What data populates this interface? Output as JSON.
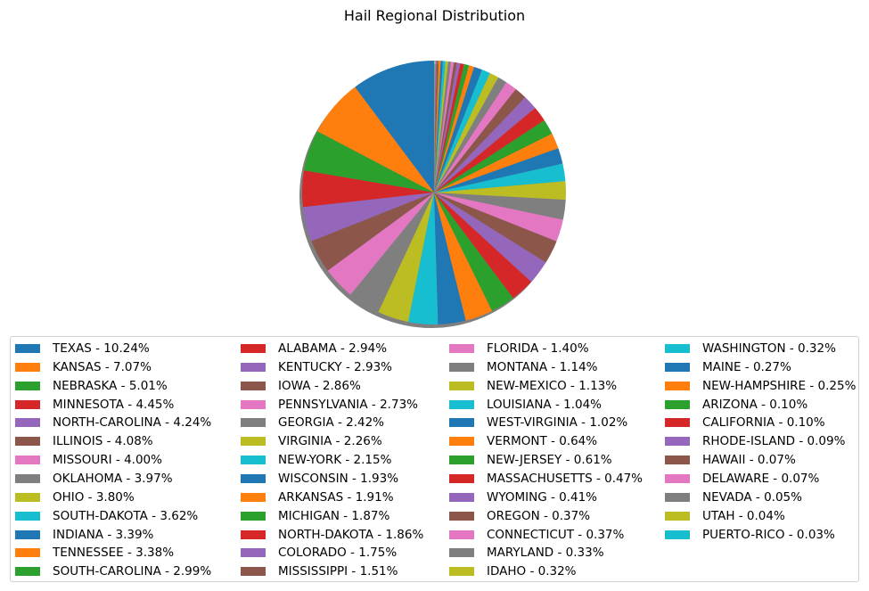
{
  "chart_data": {
    "type": "pie",
    "title": "Hail Regional Distribution",
    "shadow": true,
    "start_angle_deg": 90,
    "direction": "counterclockwise",
    "legend_placement": "bottom",
    "legend_columns": 4,
    "slices": [
      {
        "label": "TEXAS - 10.24%",
        "value": 10.24,
        "color": "#1f77b4"
      },
      {
        "label": "KANSAS - 7.07%",
        "value": 7.07,
        "color": "#ff7f0e"
      },
      {
        "label": "NEBRASKA - 5.01%",
        "value": 5.01,
        "color": "#2ca02c"
      },
      {
        "label": "MINNESOTA - 4.45%",
        "value": 4.45,
        "color": "#d62728"
      },
      {
        "label": "NORTH-CAROLINA - 4.24%",
        "value": 4.24,
        "color": "#9467bd"
      },
      {
        "label": "ILLINOIS - 4.08%",
        "value": 4.08,
        "color": "#8c564b"
      },
      {
        "label": "MISSOURI - 4.00%",
        "value": 4.0,
        "color": "#e377c2"
      },
      {
        "label": "OKLAHOMA - 3.97%",
        "value": 3.97,
        "color": "#7f7f7f"
      },
      {
        "label": "OHIO - 3.80%",
        "value": 3.8,
        "color": "#bcbd22"
      },
      {
        "label": "SOUTH-DAKOTA - 3.62%",
        "value": 3.62,
        "color": "#17becf"
      },
      {
        "label": "INDIANA - 3.39%",
        "value": 3.39,
        "color": "#1f77b4"
      },
      {
        "label": "TENNESSEE - 3.38%",
        "value": 3.38,
        "color": "#ff7f0e"
      },
      {
        "label": "SOUTH-CAROLINA - 2.99%",
        "value": 2.99,
        "color": "#2ca02c"
      },
      {
        "label": "ALABAMA - 2.94%",
        "value": 2.94,
        "color": "#d62728"
      },
      {
        "label": "KENTUCKY - 2.93%",
        "value": 2.93,
        "color": "#9467bd"
      },
      {
        "label": "IOWA - 2.86%",
        "value": 2.86,
        "color": "#8c564b"
      },
      {
        "label": "PENNSYLVANIA - 2.73%",
        "value": 2.73,
        "color": "#e377c2"
      },
      {
        "label": "GEORGIA - 2.42%",
        "value": 2.42,
        "color": "#7f7f7f"
      },
      {
        "label": "VIRGINIA - 2.26%",
        "value": 2.26,
        "color": "#bcbd22"
      },
      {
        "label": "NEW-YORK - 2.15%",
        "value": 2.15,
        "color": "#17becf"
      },
      {
        "label": "WISCONSIN - 1.93%",
        "value": 1.93,
        "color": "#1f77b4"
      },
      {
        "label": "ARKANSAS - 1.91%",
        "value": 1.91,
        "color": "#ff7f0e"
      },
      {
        "label": "MICHIGAN - 1.87%",
        "value": 1.87,
        "color": "#2ca02c"
      },
      {
        "label": "NORTH-DAKOTA - 1.86%",
        "value": 1.86,
        "color": "#d62728"
      },
      {
        "label": "COLORADO - 1.75%",
        "value": 1.75,
        "color": "#9467bd"
      },
      {
        "label": "MISSISSIPPI - 1.51%",
        "value": 1.51,
        "color": "#8c564b"
      },
      {
        "label": "FLORIDA - 1.40%",
        "value": 1.4,
        "color": "#e377c2"
      },
      {
        "label": "MONTANA - 1.14%",
        "value": 1.14,
        "color": "#7f7f7f"
      },
      {
        "label": "NEW-MEXICO - 1.13%",
        "value": 1.13,
        "color": "#bcbd22"
      },
      {
        "label": "LOUISIANA - 1.04%",
        "value": 1.04,
        "color": "#17becf"
      },
      {
        "label": "WEST-VIRGINIA - 1.02%",
        "value": 1.02,
        "color": "#1f77b4"
      },
      {
        "label": "VERMONT - 0.64%",
        "value": 0.64,
        "color": "#ff7f0e"
      },
      {
        "label": "NEW-JERSEY - 0.61%",
        "value": 0.61,
        "color": "#2ca02c"
      },
      {
        "label": "MASSACHUSETTS - 0.47%",
        "value": 0.47,
        "color": "#d62728"
      },
      {
        "label": "WYOMING - 0.41%",
        "value": 0.41,
        "color": "#9467bd"
      },
      {
        "label": "OREGON - 0.37%",
        "value": 0.37,
        "color": "#8c564b"
      },
      {
        "label": "CONNECTICUT - 0.37%",
        "value": 0.37,
        "color": "#e377c2"
      },
      {
        "label": "MARYLAND - 0.33%",
        "value": 0.33,
        "color": "#7f7f7f"
      },
      {
        "label": "IDAHO - 0.32%",
        "value": 0.32,
        "color": "#bcbd22"
      },
      {
        "label": "WASHINGTON - 0.32%",
        "value": 0.32,
        "color": "#17becf"
      },
      {
        "label": "MAINE - 0.27%",
        "value": 0.27,
        "color": "#1f77b4"
      },
      {
        "label": "NEW-HAMPSHIRE - 0.25%",
        "value": 0.25,
        "color": "#ff7f0e"
      },
      {
        "label": "ARIZONA - 0.10%",
        "value": 0.1,
        "color": "#2ca02c"
      },
      {
        "label": "CALIFORNIA - 0.10%",
        "value": 0.1,
        "color": "#d62728"
      },
      {
        "label": "RHODE-ISLAND - 0.09%",
        "value": 0.09,
        "color": "#9467bd"
      },
      {
        "label": "HAWAII - 0.07%",
        "value": 0.07,
        "color": "#8c564b"
      },
      {
        "label": "DELAWARE - 0.07%",
        "value": 0.07,
        "color": "#e377c2"
      },
      {
        "label": "NEVADA - 0.05%",
        "value": 0.05,
        "color": "#7f7f7f"
      },
      {
        "label": "UTAH - 0.04%",
        "value": 0.04,
        "color": "#bcbd22"
      },
      {
        "label": "PUERTO-RICO - 0.03%",
        "value": 0.03,
        "color": "#17becf"
      }
    ]
  }
}
